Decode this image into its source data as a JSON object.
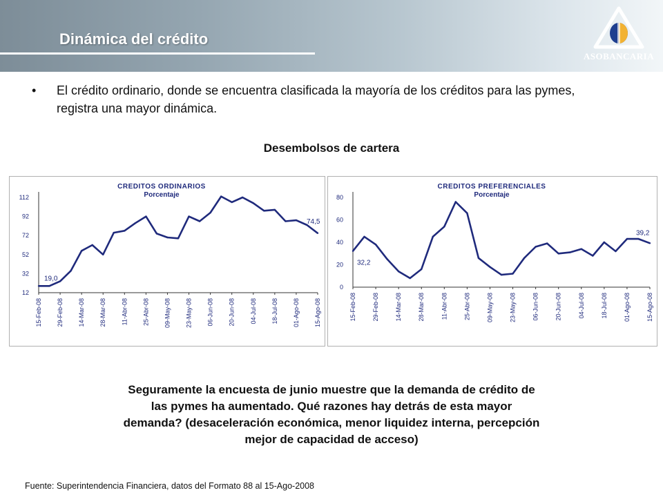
{
  "header": {
    "title": "Dinámica del crédito",
    "logo_text": "ASOBANCARIA"
  },
  "bullet": {
    "symbol": "•",
    "text_line1": "El crédito ordinario, donde se encuentra clasificada la mayoría de los créditos para las pymes,",
    "text_line2": "registra una mayor dinámica."
  },
  "section_title": "Desembolsos de cartera",
  "chart_data": [
    {
      "type": "line",
      "title": "CREDITOS ORDINARIOS",
      "subtitle": "Porcentaje",
      "color": "#1f2a7c",
      "yticks": [
        12,
        32,
        52,
        72,
        92,
        112
      ],
      "ylim": [
        12,
        112
      ],
      "xtick_labels": [
        "15-Feb-08",
        "29-Feb-08",
        "14-Mar-08",
        "28-Mar-08",
        "11-Abr-08",
        "25-Abr-08",
        "09-May-08",
        "23-May-08",
        "06-Jun-08",
        "20-Jun-08",
        "04-Jul-08",
        "18-Jul-08",
        "01-Ago-08",
        "15-Ago-08"
      ],
      "values": [
        19.0,
        19,
        24,
        35,
        56,
        62,
        52,
        75,
        77,
        85,
        92,
        74,
        70,
        69,
        92,
        87,
        96,
        113,
        107,
        112,
        106,
        98,
        99,
        87,
        88,
        83,
        74.5
      ],
      "annotations": [
        {
          "text": "19,0",
          "index": 0
        },
        {
          "text": "74,5",
          "index": 26
        }
      ]
    },
    {
      "type": "line",
      "title": "CREDITOS PREFERENCIALES",
      "subtitle": "Porcentaje",
      "color": "#1f2a7c",
      "yticks": [
        0,
        20,
        40,
        60,
        80
      ],
      "ylim": [
        0,
        80
      ],
      "xtick_labels": [
        "15-Feb-08",
        "29-Feb-08",
        "14-Mar-08",
        "28-Mar-08",
        "11-Abr-08",
        "25-Abr-08",
        "09-May-08",
        "23-May-08",
        "06-Jun-08",
        "20-Jun-08",
        "04-Jul-08",
        "18-Jul-08",
        "01-Ago-08",
        "15-Ago-08"
      ],
      "values": [
        32.2,
        45,
        38,
        25,
        14,
        8,
        16,
        45,
        54,
        76,
        66,
        26,
        18,
        11,
        12,
        26,
        36,
        39,
        30,
        31,
        34,
        28,
        40,
        32,
        43,
        43,
        39.2
      ],
      "annotations": [
        {
          "text": "32,2",
          "index": 0
        },
        {
          "text": "39,2",
          "index": 26
        }
      ]
    }
  ],
  "bottom_text": {
    "line1": "Seguramente la encuesta de junio muestre que la demanda de crédito de",
    "line2": "las pymes ha aumentado. Qué razones hay detrás de esta mayor",
    "line3": "demanda? (desaceleración económica, menor liquidez interna, percepción",
    "line4": "mejor de capacidad de acceso)"
  },
  "source": "Fuente: Superintendencia Financiera, datos del Formato 88 al 15-Ago-2008"
}
